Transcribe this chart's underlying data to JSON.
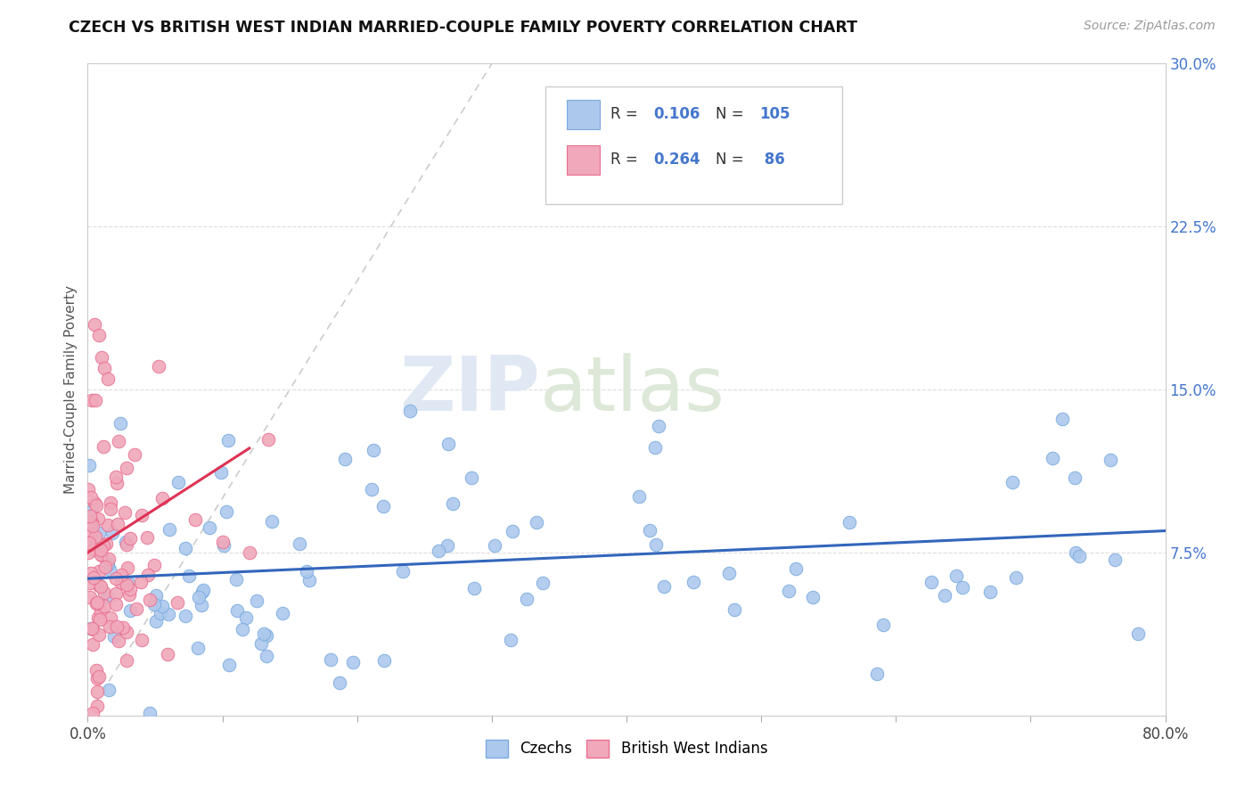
{
  "title": "CZECH VS BRITISH WEST INDIAN MARRIED-COUPLE FAMILY POVERTY CORRELATION CHART",
  "source": "Source: ZipAtlas.com",
  "ylabel": "Married-Couple Family Poverty",
  "xlim": [
    0,
    0.8
  ],
  "ylim": [
    0,
    0.3
  ],
  "xticks": [
    0.0,
    0.1,
    0.2,
    0.3,
    0.4,
    0.5,
    0.6,
    0.7,
    0.8
  ],
  "xticklabels": [
    "0.0%",
    "",
    "",
    "",
    "",
    "",
    "",
    "",
    "80.0%"
  ],
  "yticks": [
    0.0,
    0.075,
    0.15,
    0.225,
    0.3
  ],
  "yticklabels_right": [
    "",
    "7.5%",
    "15.0%",
    "22.5%",
    "30.0%"
  ],
  "czech_color": "#adc8ed",
  "bwi_color": "#f0a8ba",
  "czech_edge": "#7aabdf",
  "bwi_edge": "#e87090",
  "czech_line_color": "#3366bb",
  "bwi_line_color": "#dd3355",
  "ref_line_color": "#cccccc",
  "yticklabel_color": "#4477cc",
  "legend_label1": "Czechs",
  "legend_label2": "British West Indians",
  "watermark1": "ZIP",
  "watermark2": "atlas"
}
